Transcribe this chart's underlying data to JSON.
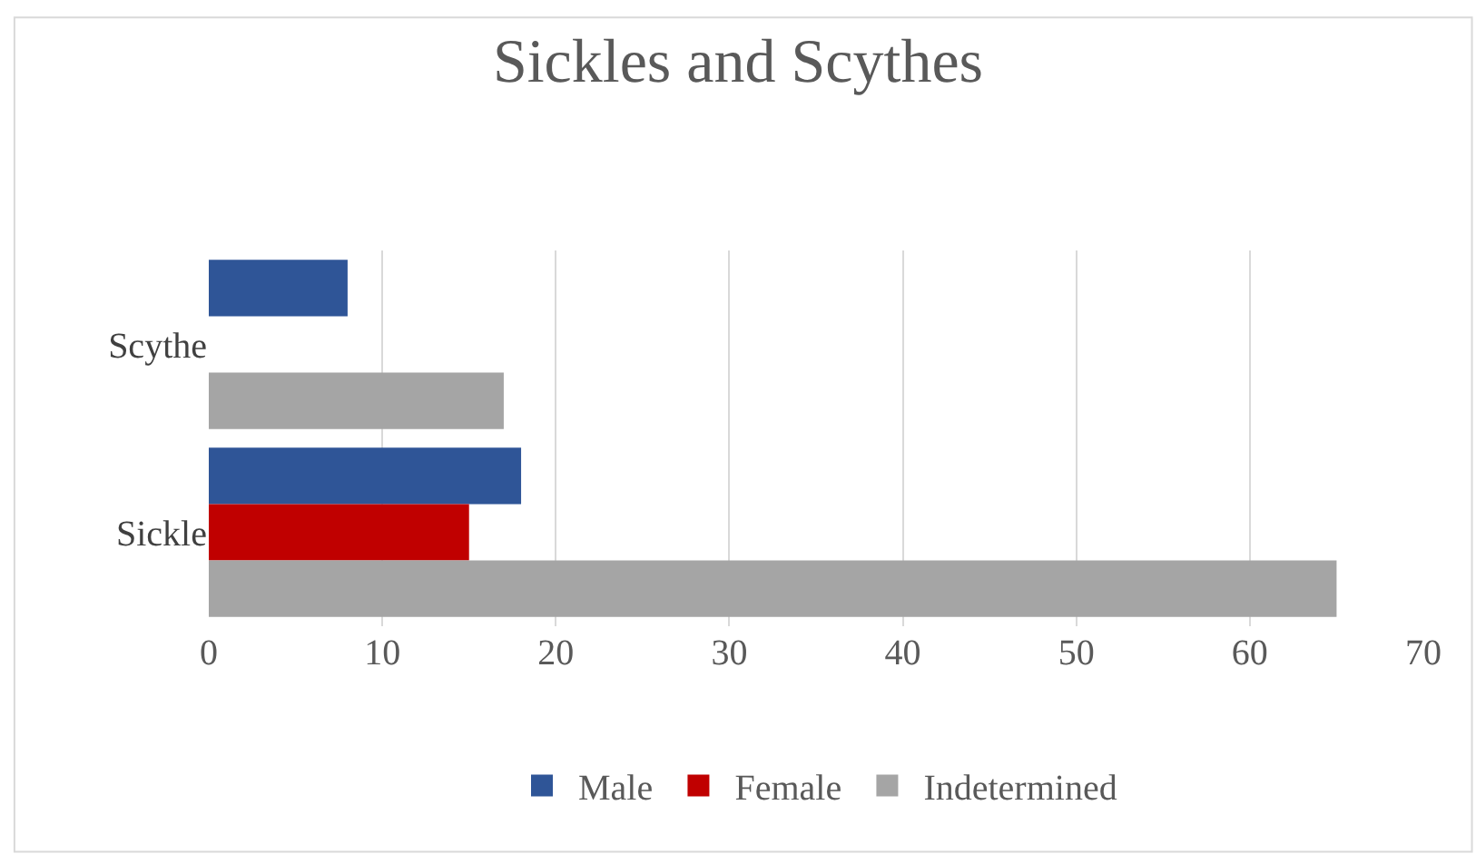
{
  "chart_data": {
    "type": "bar",
    "orientation": "horizontal",
    "title": "Sickles and Scythes",
    "categories": [
      "Scythe",
      "Sickle"
    ],
    "series": [
      {
        "name": "Male",
        "color": "#2f5597",
        "values": [
          8,
          18
        ]
      },
      {
        "name": "Female",
        "color": "#c00000",
        "values": [
          null,
          15
        ]
      },
      {
        "name": "Indetermined",
        "color": "#a5a5a5",
        "values": [
          17,
          65
        ]
      }
    ],
    "xlim": [
      0,
      70
    ],
    "xticks": [
      0,
      10,
      20,
      30,
      40,
      50,
      60,
      70
    ],
    "grid": "x",
    "legend": "bottom"
  }
}
